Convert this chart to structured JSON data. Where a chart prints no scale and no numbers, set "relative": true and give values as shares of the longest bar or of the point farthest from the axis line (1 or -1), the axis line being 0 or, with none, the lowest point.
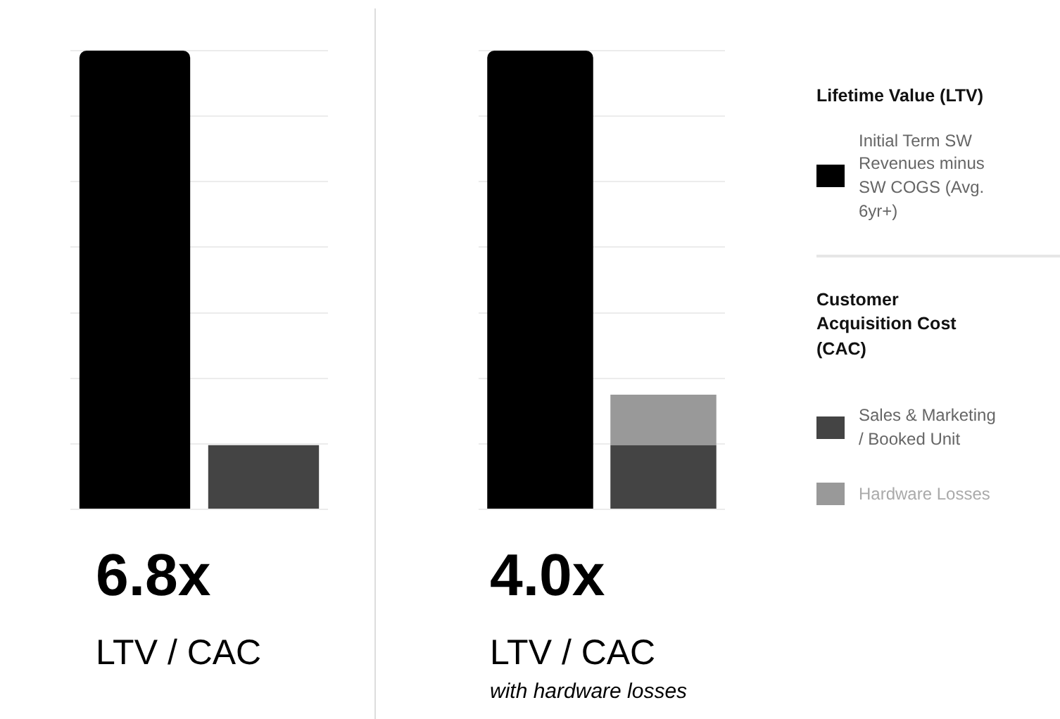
{
  "chart_data": [
    {
      "type": "bar",
      "relative": true,
      "categories": [
        null,
        null
      ],
      "grid": "y",
      "legend": false,
      "values": [
        1,
        0.14
      ],
      "colors": [
        "#000000",
        "#444444"
      ],
      "annotations": [
        "6.8x",
        "LTV / CAC"
      ]
    },
    {
      "type": "bar",
      "relative": true,
      "stacked": true,
      "categories": [
        null,
        null
      ],
      "grid": "y",
      "legend": "right",
      "legend_title": "Lifetime Value (LTV)",
      "series": [
        {
          "name": "Initial Term SW Revenues minus SW COGS (Avg. 6yr+)",
          "color": "#000000",
          "values": [
            1,
            null
          ]
        },
        {
          "name": "Sales & Marketing / Booked Unit",
          "color": "#444444",
          "values": [
            null,
            0.14
          ]
        },
        {
          "name": "Hardware Losses",
          "color": "#999999",
          "values": [
            null,
            0.11
          ]
        }
      ],
      "annotations": [
        "4.0x",
        "LTV / CAC",
        "with hardware losses",
        "Customer Acquisition Cost (CAC)"
      ]
    }
  ]
}
